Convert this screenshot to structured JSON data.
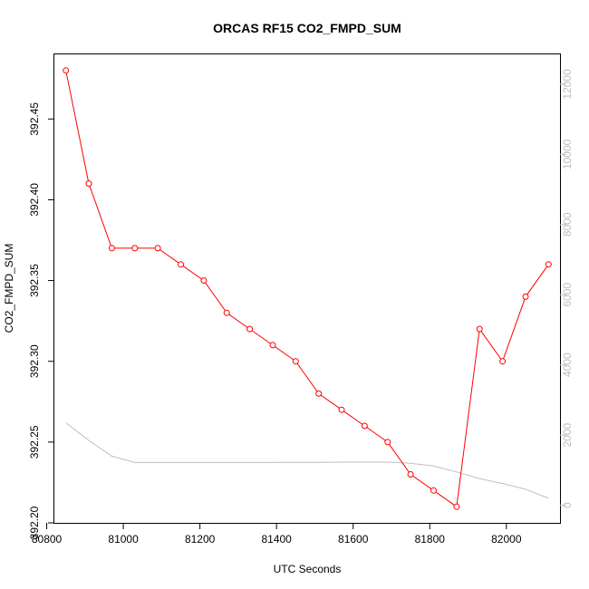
{
  "chart_data": {
    "type": "line",
    "title": "ORCAS RF15 CO2_FMPD_SUM",
    "xlabel": "UTC Seconds",
    "ylabel": "CO2_FMPD_SUM",
    "xlim": [
      80820,
      82140
    ],
    "ylim": [
      392.2,
      392.49
    ],
    "y2lim": [
      -500,
      12850
    ],
    "x_ticks": [
      "80800",
      "81000",
      "81200",
      "81400",
      "81600",
      "81800",
      "82000"
    ],
    "y_ticks": [
      "392.20",
      "392.25",
      "392.30",
      "392.35",
      "392.40",
      "392.45"
    ],
    "y2_ticks": [
      "0",
      "2000",
      "4000",
      "6000",
      "8000",
      "10000",
      "12000"
    ],
    "grid": false,
    "series": [
      {
        "axis": "left",
        "color": "#ff0000",
        "marker": "circle",
        "x": [
          80850,
          80910,
          80970,
          81030,
          81090,
          81150,
          81210,
          81270,
          81330,
          81390,
          81450,
          81510,
          81570,
          81630,
          81690,
          81750,
          81810,
          81870,
          81930,
          81990,
          82050,
          82110
        ],
        "values": [
          392.48,
          392.41,
          392.37,
          392.37,
          392.37,
          392.36,
          392.35,
          392.33,
          392.32,
          392.31,
          392.3,
          392.28,
          392.27,
          392.26,
          392.25,
          392.23,
          392.22,
          392.21,
          392.32,
          392.3,
          392.34,
          392.36
        ]
      },
      {
        "axis": "right",
        "color": "#bebebe",
        "marker": "none",
        "x": [
          80850,
          80910,
          80970,
          81030,
          81090,
          81150,
          81210,
          81270,
          81330,
          81390,
          81450,
          81510,
          81570,
          81630,
          81690,
          81750,
          81810,
          81870,
          81930,
          81990,
          82050,
          82110
        ],
        "values": [
          2350,
          1850,
          1400,
          1220,
          1220,
          1220,
          1220,
          1220,
          1220,
          1220,
          1225,
          1225,
          1230,
          1230,
          1230,
          1200,
          1120,
          950,
          760,
          620,
          460,
          200
        ]
      }
    ]
  }
}
